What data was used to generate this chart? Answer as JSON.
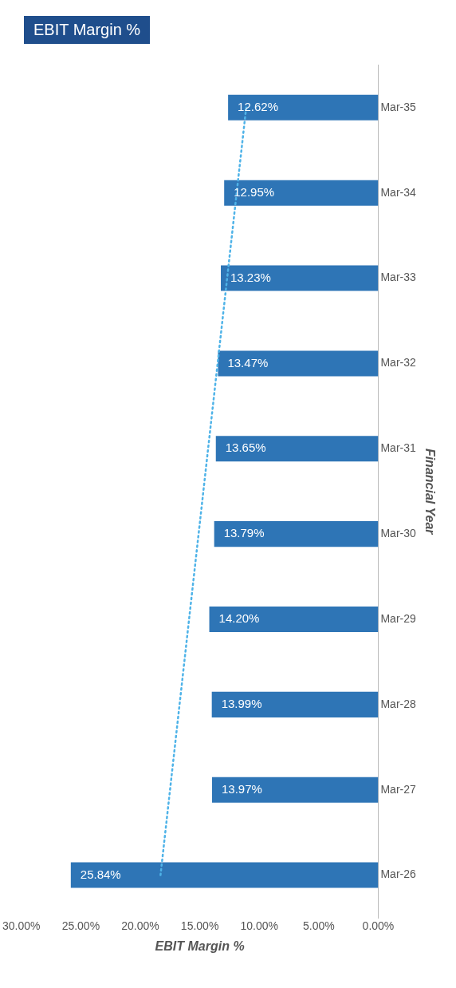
{
  "chart_data": {
    "type": "bar",
    "orientation": "horizontal",
    "title": "EBIT Margin %",
    "xlabel": "EBIT Margin %",
    "ylabel": "Financial Year",
    "categories": [
      "Mar-35",
      "Mar-34",
      "Mar-33",
      "Mar-32",
      "Mar-31",
      "Mar-30",
      "Mar-29",
      "Mar-28",
      "Mar-27",
      "Mar-26"
    ],
    "series": [
      {
        "color": "#2e75b6",
        "values": [
          12.62,
          12.95,
          13.23,
          13.47,
          13.65,
          13.79,
          14.2,
          13.99,
          13.97,
          25.84
        ],
        "value_labels": [
          "12.62%",
          "12.95%",
          "13.23%",
          "13.47%",
          "13.65%",
          "13.79%",
          "14.20%",
          "13.99%",
          "13.97%",
          "25.84%"
        ]
      },
      {
        "type": "line",
        "color": "#4fb3e8",
        "line_style": "dotted",
        "marker": "none",
        "values": [
          11.1,
          null,
          null,
          null,
          null,
          null,
          null,
          null,
          null,
          18.3
        ]
      }
    ],
    "xlim": [
      30,
      0
    ],
    "xticks": [
      {
        "value": 30,
        "label": "30.00%"
      },
      {
        "value": 25,
        "label": "25.00%"
      },
      {
        "value": 20,
        "label": "20.00%"
      },
      {
        "value": 15,
        "label": "15.00%"
      },
      {
        "value": 10,
        "label": "10.00%"
      },
      {
        "value": 5,
        "label": "5.00%"
      },
      {
        "value": 0,
        "label": "0.00%"
      }
    ],
    "grid": false,
    "legend": false
  }
}
